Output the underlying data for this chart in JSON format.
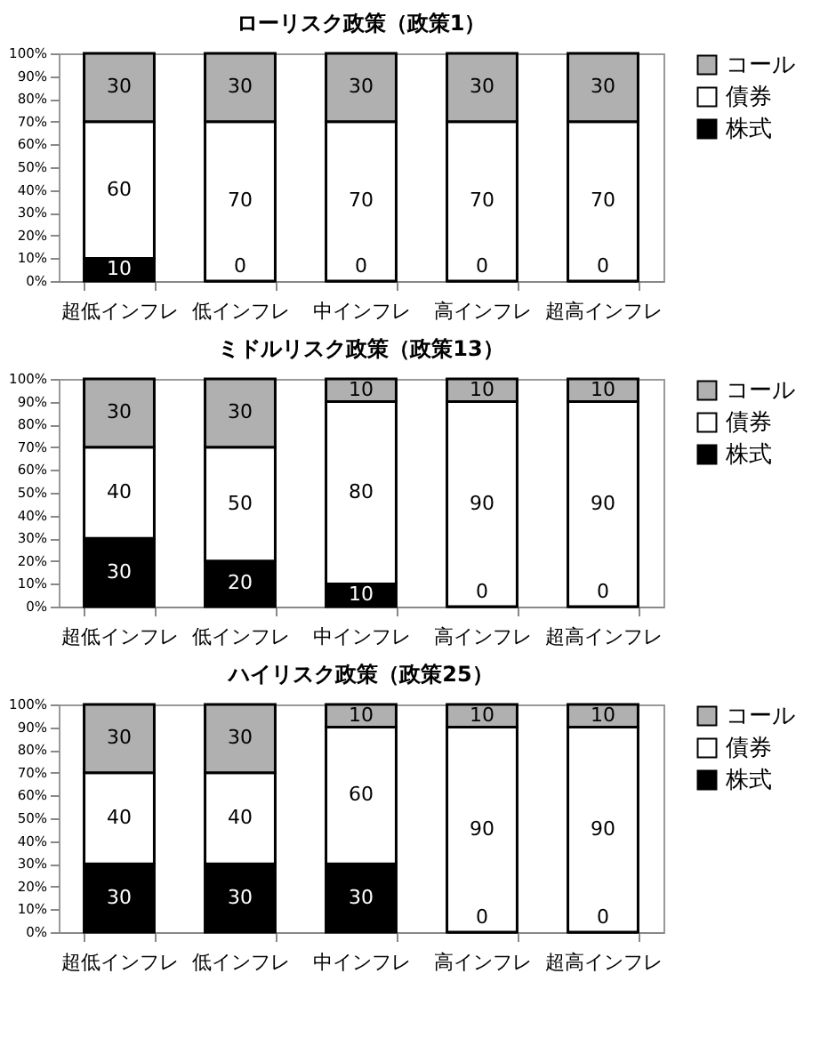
{
  "chart_data": [
    {
      "type": "bar",
      "stacked": true,
      "title": "ローリスク政策（政策1）",
      "categories": [
        "超低インフレ",
        "低インフレ",
        "中インフレ",
        "高インフレ",
        "超高インフレ"
      ],
      "series": [
        {
          "name": "株式",
          "color": "#000000",
          "values": [
            10,
            0,
            0,
            0,
            0
          ]
        },
        {
          "name": "債券",
          "color": "#ffffff",
          "values": [
            60,
            70,
            70,
            70,
            70
          ]
        },
        {
          "name": "コール",
          "color": "#b0b0b0",
          "values": [
            30,
            30,
            30,
            30,
            30
          ]
        }
      ],
      "ylim": [
        0,
        100
      ],
      "yticks": [
        {
          "value": 0,
          "label": "0%"
        },
        {
          "value": 10,
          "label": "10%"
        },
        {
          "value": 20,
          "label": "20%"
        },
        {
          "value": 30,
          "label": "30%"
        },
        {
          "value": 40,
          "label": "40%"
        },
        {
          "value": 50,
          "label": "50%"
        },
        {
          "value": 60,
          "label": "60%"
        },
        {
          "value": 70,
          "label": "70%"
        },
        {
          "value": 80,
          "label": "80%"
        },
        {
          "value": 90,
          "label": "90%"
        },
        {
          "value": 100,
          "label": "100%"
        }
      ],
      "data_labels": true,
      "legend": "right"
    },
    {
      "type": "bar",
      "stacked": true,
      "title": "ミドルリスク政策（政策13）",
      "categories": [
        "超低インフレ",
        "低インフレ",
        "中インフレ",
        "高インフレ",
        "超高インフレ"
      ],
      "series": [
        {
          "name": "株式",
          "color": "#000000",
          "values": [
            30,
            20,
            10,
            0,
            0
          ]
        },
        {
          "name": "債券",
          "color": "#ffffff",
          "values": [
            40,
            50,
            80,
            90,
            90
          ]
        },
        {
          "name": "コール",
          "color": "#b0b0b0",
          "values": [
            30,
            30,
            10,
            10,
            10
          ]
        }
      ],
      "ylim": [
        0,
        100
      ],
      "yticks": [
        {
          "value": 0,
          "label": "0%"
        },
        {
          "value": 10,
          "label": "10%"
        },
        {
          "value": 20,
          "label": "20%"
        },
        {
          "value": 30,
          "label": "30%"
        },
        {
          "value": 40,
          "label": "40%"
        },
        {
          "value": 50,
          "label": "50%"
        },
        {
          "value": 60,
          "label": "60%"
        },
        {
          "value": 70,
          "label": "70%"
        },
        {
          "value": 80,
          "label": "80%"
        },
        {
          "value": 90,
          "label": "90%"
        },
        {
          "value": 100,
          "label": "100%"
        }
      ],
      "data_labels": true,
      "legend": "right"
    },
    {
      "type": "bar",
      "stacked": true,
      "title": "ハイリスク政策（政策25）",
      "categories": [
        "超低インフレ",
        "低インフレ",
        "中インフレ",
        "高インフレ",
        "超高インフレ"
      ],
      "series": [
        {
          "name": "株式",
          "color": "#000000",
          "values": [
            30,
            30,
            30,
            0,
            0
          ]
        },
        {
          "name": "債券",
          "color": "#ffffff",
          "values": [
            40,
            40,
            60,
            90,
            90
          ]
        },
        {
          "name": "コール",
          "color": "#b0b0b0",
          "values": [
            30,
            30,
            10,
            10,
            10
          ]
        }
      ],
      "ylim": [
        0,
        100
      ],
      "yticks": [
        {
          "value": 0,
          "label": "0%"
        },
        {
          "value": 10,
          "label": "10%"
        },
        {
          "value": 20,
          "label": "20%"
        },
        {
          "value": 30,
          "label": "30%"
        },
        {
          "value": 40,
          "label": "40%"
        },
        {
          "value": 50,
          "label": "50%"
        },
        {
          "value": 60,
          "label": "60%"
        },
        {
          "value": 70,
          "label": "70%"
        },
        {
          "value": 80,
          "label": "80%"
        },
        {
          "value": 90,
          "label": "90%"
        },
        {
          "value": 100,
          "label": "100%"
        }
      ],
      "data_labels": true,
      "legend": "right"
    }
  ]
}
